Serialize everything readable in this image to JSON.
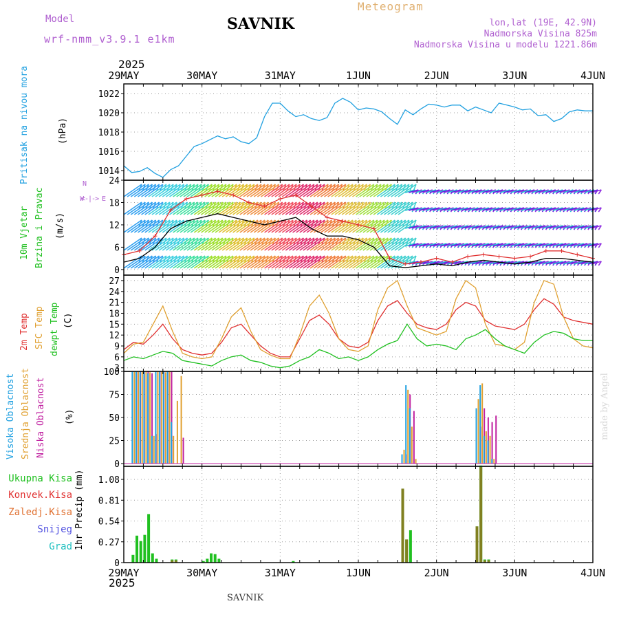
{
  "header": {
    "model_label": "Model",
    "model_run": "wrf-nmm_v3.9.1 e1km",
    "station": "SAVNIK",
    "product": "Meteogram",
    "lonlat": "lon,lat (19E, 42.9N)",
    "elevation": "Nadmorska Visina 825m",
    "model_elevation": "Nadmorska Visina u modelu 1221.86m",
    "year_top": "2025",
    "year_bottom": "2025",
    "footer_station": "SAVNIK",
    "credit": "made by Angel"
  },
  "time_axis": {
    "labels": [
      "29MAY",
      "30MAY",
      "31MAY",
      "1JUN",
      "2JUN",
      "3JUN",
      "4JUN"
    ]
  },
  "panel_labels": {
    "pressure": [
      "Pritisak na nivou mora",
      "(hPa)"
    ],
    "wind": [
      "10m Vjetar",
      "Brzina i Pravac",
      "(m/s)"
    ],
    "wind_compass": "N",
    "wind_compass_w": "W",
    "wind_compass_e": "E",
    "temp": [
      "2m Temp",
      "SFC Temp",
      "dewpt Temp",
      "(C)"
    ],
    "cloud": [
      "Visoka Oblacnost",
      "Srednja Oblacnost",
      "Niska Oblacnost",
      "(%)"
    ],
    "precip_unit": "1hr Precip (mm)",
    "precip_legend": [
      "Ukupna Kisa",
      "Konvek.Kisa",
      "Zaledj.Kisa",
      "Snijeg",
      "Grad"
    ]
  },
  "colors": {
    "pressure": "#20a0e0",
    "temp2m": "#e03030",
    "sfc": "#e0a030",
    "dew": "#20c020",
    "cloud_high": "#20a0e0",
    "cloud_mid": "#e0a030",
    "cloud_low": "#c020a0",
    "rain_total": "#20c020",
    "rain_conv": "#e03030",
    "rain_frz": "#e07030",
    "snow": "#5050e0",
    "hail": "#20c0c0",
    "wind_speed": "#000000",
    "wind_gust": "#e03030"
  },
  "chart_data": [
    {
      "type": "line",
      "name": "pressure",
      "ylabel": "(hPa)",
      "ylim": [
        1013,
        1023
      ],
      "yticks": [
        1014,
        1016,
        1018,
        1020,
        1022
      ],
      "x": [
        0,
        0.1,
        0.2,
        0.3,
        0.4,
        0.5,
        0.6,
        0.7,
        0.8,
        0.9,
        1.0,
        1.1,
        1.2,
        1.3,
        1.4,
        1.5,
        1.6,
        1.7,
        1.8,
        1.9,
        2.0,
        2.1,
        2.2,
        2.3,
        2.4,
        2.5,
        2.6,
        2.7,
        2.8,
        2.9,
        3.0,
        3.1,
        3.2,
        3.3,
        3.4,
        3.5,
        3.6,
        3.7,
        3.8,
        3.9,
        4.0,
        4.1,
        4.2,
        4.3,
        4.4,
        4.5,
        4.6,
        4.7,
        4.8,
        4.9,
        5.0,
        5.1,
        5.2,
        5.3,
        5.4,
        5.5,
        5.6,
        5.7,
        5.8,
        5.9,
        6.0
      ],
      "values": [
        1014.5,
        1013.8,
        1013.9,
        1014.3,
        1013.7,
        1013.3,
        1014.1,
        1014.5,
        1015.5,
        1016.5,
        1016.8,
        1017.2,
        1017.6,
        1017.3,
        1017.5,
        1017.0,
        1016.8,
        1017.4,
        1019.6,
        1021.0,
        1021.0,
        1020.2,
        1019.6,
        1019.8,
        1019.4,
        1019.2,
        1019.5,
        1021.0,
        1021.5,
        1021.1,
        1020.3,
        1020.5,
        1020.4,
        1020.1,
        1019.4,
        1018.8,
        1020.3,
        1019.8,
        1020.4,
        1020.9,
        1020.8,
        1020.6,
        1020.8,
        1020.8,
        1020.2,
        1020.6,
        1020.3,
        1020.0,
        1021.0,
        1020.8,
        1020.6,
        1020.3,
        1020.4,
        1019.7,
        1019.8,
        1019.1,
        1019.4,
        1020.1,
        1020.3,
        1020.2,
        1020.2
      ]
    },
    {
      "type": "line",
      "name": "wind",
      "ylabel": "(m/s)",
      "ylim": [
        -1.5,
        24
      ],
      "yticks": [
        0,
        6,
        12,
        18,
        24
      ],
      "x": [
        0,
        0.2,
        0.4,
        0.6,
        0.8,
        1.0,
        1.2,
        1.4,
        1.6,
        1.8,
        2.0,
        2.2,
        2.4,
        2.6,
        2.8,
        3.0,
        3.2,
        3.4,
        3.6,
        3.8,
        4.0,
        4.2,
        4.4,
        4.6,
        4.8,
        5.0,
        5.2,
        5.4,
        5.6,
        5.8,
        6.0
      ],
      "series": [
        {
          "name": "speed",
          "values": [
            2,
            3,
            6,
            11,
            13,
            14,
            15,
            14,
            13,
            12,
            13,
            14,
            11,
            9,
            9,
            8,
            6,
            1,
            0.5,
            1,
            1.5,
            1,
            2,
            2.5,
            2,
            1.5,
            2,
            3,
            3,
            2.5,
            2
          ]
        },
        {
          "name": "gust",
          "values": [
            4,
            5,
            9,
            16,
            19,
            20,
            21,
            20,
            18,
            17,
            19,
            20,
            17,
            14,
            13,
            12,
            11,
            3,
            1.5,
            2,
            3,
            2,
            3.5,
            4,
            3.5,
            3,
            3.5,
            5,
            5,
            4,
            3
          ]
        }
      ]
    },
    {
      "type": "line",
      "name": "temperature",
      "ylabel": "(C)",
      "ylim": [
        2,
        28.5
      ],
      "yticks": [
        3,
        6,
        9,
        12,
        15,
        18,
        21,
        24,
        27
      ],
      "x": [
        0,
        0.125,
        0.25,
        0.375,
        0.5,
        0.625,
        0.75,
        0.875,
        1.0,
        1.125,
        1.25,
        1.375,
        1.5,
        1.625,
        1.75,
        1.875,
        2.0,
        2.125,
        2.25,
        2.375,
        2.5,
        2.625,
        2.75,
        2.875,
        3.0,
        3.125,
        3.25,
        3.375,
        3.5,
        3.625,
        3.75,
        3.875,
        4.0,
        4.125,
        4.25,
        4.375,
        4.5,
        4.625,
        4.75,
        4.875,
        5.0,
        5.125,
        5.25,
        5.375,
        5.5,
        5.625,
        5.75,
        5.875,
        6.0
      ],
      "series": [
        {
          "name": "2m Temp",
          "values": [
            8,
            10,
            9.5,
            12,
            15,
            11,
            8,
            7,
            6.5,
            7,
            10,
            14,
            15,
            12,
            9,
            7,
            6,
            6,
            11,
            16,
            17.5,
            15,
            11,
            9,
            8.5,
            10,
            16,
            20,
            21.5,
            18,
            15,
            14,
            13.5,
            15,
            19,
            21,
            20,
            16,
            14.5,
            14,
            13.5,
            15,
            19,
            22,
            20.5,
            17,
            16,
            15.5,
            15
          ]
        },
        {
          "name": "SFC Temp",
          "values": [
            7,
            9.5,
            10,
            15,
            20,
            13,
            7,
            6,
            5.5,
            6,
            11,
            17,
            19.5,
            13,
            8,
            6.5,
            5.5,
            5.5,
            12,
            20,
            23,
            18,
            11,
            8,
            7.5,
            9,
            19,
            25,
            27,
            20,
            14,
            13,
            12,
            13,
            22,
            27,
            25,
            15,
            9.5,
            9,
            8,
            10,
            21,
            27,
            26,
            17,
            11,
            9,
            8.5
          ]
        },
        {
          "name": "dewpt Temp",
          "values": [
            5,
            6,
            5.5,
            6.5,
            7.5,
            7,
            5,
            4.5,
            4,
            3.5,
            5,
            6,
            6.5,
            5,
            4.5,
            3.5,
            3,
            3.5,
            5,
            6,
            8,
            7,
            5.5,
            6,
            5,
            6,
            8,
            9.5,
            10.5,
            15,
            11,
            9,
            9.5,
            9,
            8,
            11,
            12,
            13.5,
            11,
            9,
            8,
            7,
            10,
            12,
            13,
            12.5,
            11,
            10.5,
            10.5
          ]
        }
      ]
    },
    {
      "type": "bar",
      "name": "cloud",
      "ylabel": "(%)",
      "ylim": [
        -3,
        100
      ],
      "yticks": [
        0,
        25,
        50,
        75,
        100
      ],
      "x": [
        0.1,
        0.15,
        0.2,
        0.25,
        0.3,
        0.35,
        0.4,
        0.45,
        0.5,
        0.55,
        0.6,
        0.65,
        0.7,
        3.55,
        3.6,
        3.65,
        3.7,
        4.5,
        4.55,
        4.6,
        4.65,
        4.7,
        4.75
      ],
      "series": [
        {
          "name": "high",
          "values": [
            100,
            100,
            100,
            100,
            98,
            30,
            100,
            100,
            100,
            100,
            45,
            0,
            0,
            10,
            85,
            60,
            0,
            60,
            85,
            30,
            25,
            5,
            0
          ]
        },
        {
          "name": "mid",
          "values": [
            100,
            100,
            100,
            100,
            99,
            30,
            100,
            100,
            99,
            100,
            30,
            68,
            95,
            15,
            80,
            40,
            5,
            70,
            87,
            35,
            30,
            5,
            0
          ]
        },
        {
          "name": "low",
          "values": [
            100,
            100,
            100,
            100,
            98,
            32,
            100,
            100,
            100,
            100,
            0,
            0,
            28,
            10,
            75,
            57,
            0,
            40,
            60,
            50,
            45,
            52,
            0
          ]
        }
      ]
    },
    {
      "type": "bar",
      "name": "precip",
      "ylabel": "1hr Precip (mm)",
      "ylim": [
        0,
        1.25
      ],
      "yticks": [
        0,
        0.27,
        0.54,
        0.81,
        1.08
      ],
      "x": [
        0.1,
        0.15,
        0.2,
        0.25,
        0.3,
        0.35,
        0.4,
        0.6,
        0.65,
        1.0,
        1.05,
        1.1,
        1.15,
        1.2,
        2.15,
        3.55,
        3.6,
        3.65,
        4.5,
        4.55,
        4.6,
        4.65
      ],
      "series": [
        {
          "name": "Ukupna Kisa",
          "values": [
            0.1,
            0.35,
            0.28,
            0.36,
            0.63,
            0.12,
            0.05,
            0.04,
            0.04,
            0.02,
            0.05,
            0.12,
            0.11,
            0.05,
            0.02,
            0.96,
            0.3,
            0.42,
            0.47,
            1.26,
            0.04,
            0.04
          ]
        },
        {
          "name": "Konvek.Kisa",
          "values": [
            0,
            0,
            0,
            0,
            0,
            0,
            0,
            0.03,
            0.03,
            0,
            0,
            0,
            0,
            0,
            0,
            0.96,
            0.3,
            0,
            0.47,
            1.24,
            0.03,
            0.03
          ]
        }
      ]
    }
  ]
}
